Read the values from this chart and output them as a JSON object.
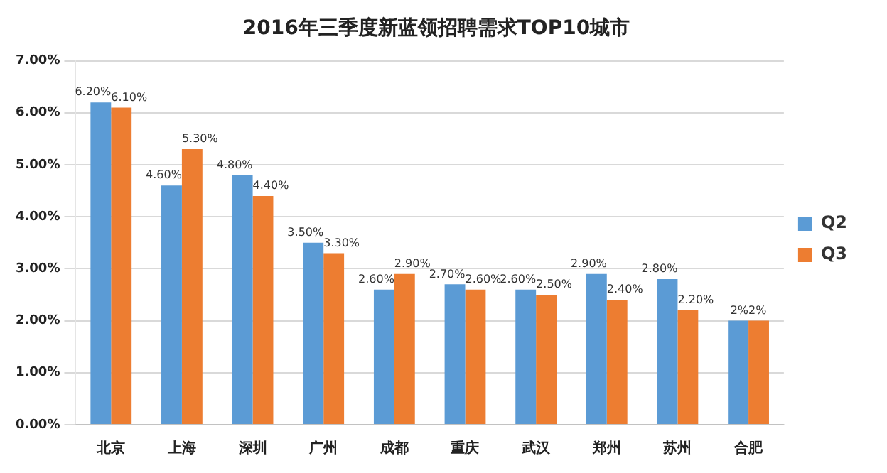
{
  "chart_data": {
    "type": "bar",
    "title": "2016年三季度新蓝领招聘需求TOP10城市",
    "categories": [
      "北京",
      "上海",
      "深圳",
      "广州",
      "成都",
      "重庆",
      "武汉",
      "郑州",
      "苏州",
      "合肥"
    ],
    "series": [
      {
        "name": "Q2",
        "color": "#5b9bd5",
        "values": [
          6.2,
          4.6,
          4.8,
          3.5,
          2.6,
          2.7,
          2.6,
          2.9,
          2.8,
          2
        ],
        "value_labels": [
          "6.20%",
          "4.60%",
          "4.80%",
          "3.50%",
          "2.60%",
          "2.70%",
          "2.60%",
          "2.90%",
          "2.80%",
          "2%"
        ]
      },
      {
        "name": "Q3",
        "color": "#ed7d31",
        "values": [
          6.1,
          5.3,
          4.4,
          3.3,
          2.9,
          2.6,
          2.5,
          2.4,
          2.2,
          2
        ],
        "value_labels": [
          "6.10%",
          "5.30%",
          "4.40%",
          "3.30%",
          "2.90%",
          "2.60%",
          "2.50%",
          "2.40%",
          "2.20%",
          "2%"
        ]
      }
    ],
    "ylim": [
      0,
      7
    ],
    "yticks": [
      {
        "value": 0,
        "label": "0.00%"
      },
      {
        "value": 1,
        "label": "1.00%"
      },
      {
        "value": 2,
        "label": "2.00%"
      },
      {
        "value": 3,
        "label": "3.00%"
      },
      {
        "value": 4,
        "label": "4.00%"
      },
      {
        "value": 5,
        "label": "5.00%"
      },
      {
        "value": 6,
        "label": "6.00%"
      },
      {
        "value": 7,
        "label": "7.00%"
      }
    ],
    "grid": "y",
    "legend": "right"
  }
}
